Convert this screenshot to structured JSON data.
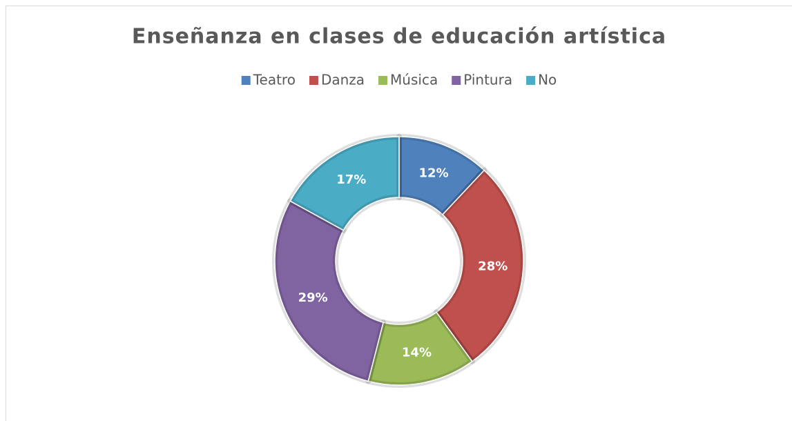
{
  "chart_data": {
    "type": "donut",
    "title": "Enseñanza en clases de educación artística",
    "categories": [
      "Teatro",
      "Danza",
      "Música",
      "Pintura",
      "No"
    ],
    "values": [
      12,
      28,
      14,
      29,
      17
    ],
    "value_labels": [
      "12%",
      "28%",
      "14%",
      "29%",
      "17%"
    ],
    "colors": [
      "#4f81bd",
      "#c0504d",
      "#9bbb59",
      "#8064a2",
      "#4bacc6"
    ],
    "legend": "top"
  }
}
